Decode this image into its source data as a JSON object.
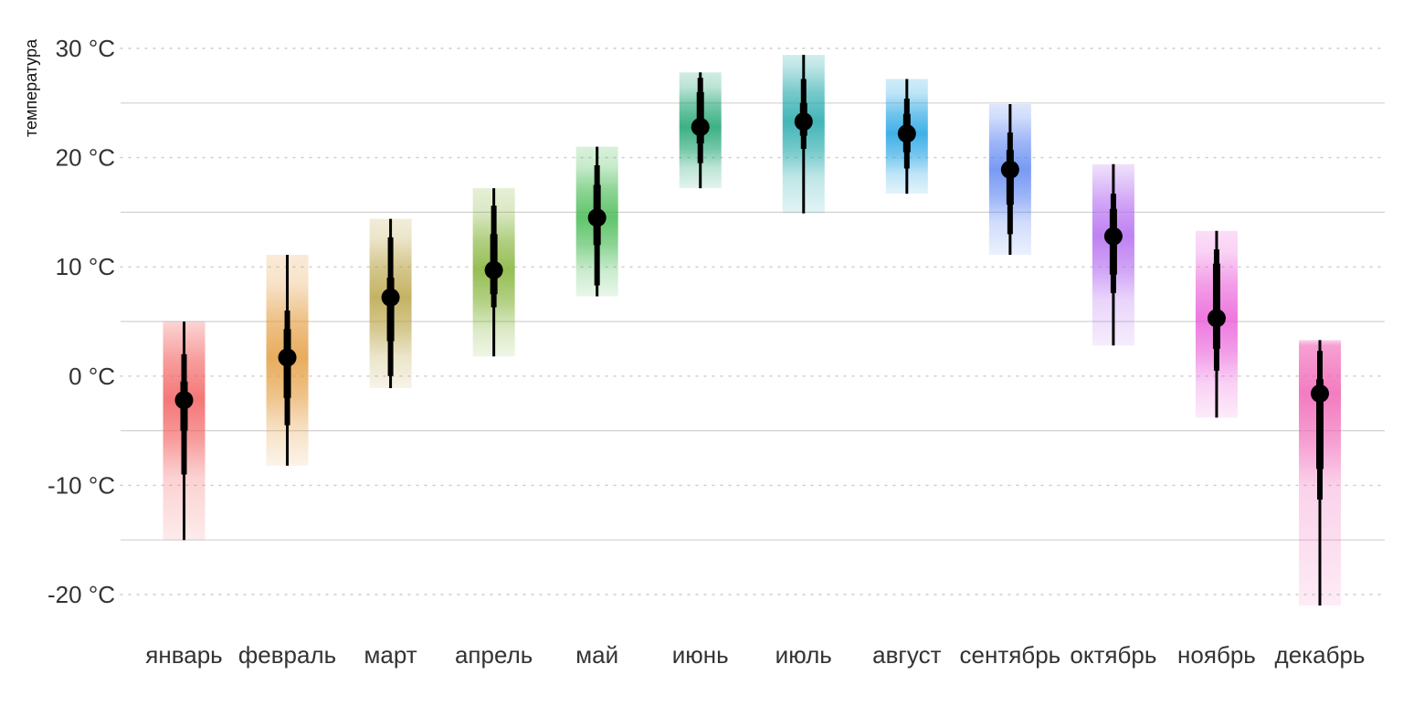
{
  "chart_data": {
    "type": "interval",
    "ylabel": "температура",
    "y_ticks": [
      {
        "value": 30,
        "label": "30 °C"
      },
      {
        "value": 20,
        "label": "20 °C"
      },
      {
        "value": 10,
        "label": "10 °C"
      },
      {
        "value": 0,
        "label": "0 °C"
      },
      {
        "value": -10,
        "label": "-10 °C"
      },
      {
        "value": -20,
        "label": "-20 °C"
      }
    ],
    "ylim": [
      -22,
      32
    ],
    "grid": {
      "dotted_major": [
        30,
        20,
        10,
        0,
        -10,
        -20
      ],
      "solid_minor": [
        25,
        15,
        5,
        -5,
        -15
      ]
    },
    "categories": [
      "январь",
      "февраль",
      "март",
      "апрель",
      "май",
      "июнь",
      "июль",
      "август",
      "сентябрь",
      "октябрь",
      "ноябрь",
      "декабрь"
    ],
    "series": [
      {
        "month": "январь",
        "median": -2.2,
        "range": [
          -15.0,
          5.0
        ],
        "interval_95": [
          -9.0,
          2.0
        ],
        "interval_66": [
          -5.0,
          -0.5
        ],
        "color": "#f25a5a"
      },
      {
        "month": "февраль",
        "median": 1.7,
        "range": [
          -8.2,
          11.1
        ],
        "interval_95": [
          -4.5,
          6.0
        ],
        "interval_66": [
          -2.0,
          4.3
        ],
        "color": "#e39a3a"
      },
      {
        "month": "март",
        "median": 7.2,
        "range": [
          -1.1,
          14.4
        ],
        "interval_95": [
          0.0,
          12.7
        ],
        "interval_66": [
          3.2,
          9.0
        ],
        "color": "#b8a242"
      },
      {
        "month": "апрель",
        "median": 9.7,
        "range": [
          1.8,
          17.2
        ],
        "interval_95": [
          6.3,
          15.6
        ],
        "interval_66": [
          7.5,
          13.0
        ],
        "color": "#7fb030"
      },
      {
        "month": "май",
        "median": 14.5,
        "range": [
          7.3,
          21.0
        ],
        "interval_95": [
          8.3,
          19.3
        ],
        "interval_66": [
          12.0,
          17.5
        ],
        "color": "#3fb84c"
      },
      {
        "month": "июнь",
        "median": 22.8,
        "range": [
          17.2,
          27.8
        ],
        "interval_95": [
          19.5,
          27.3
        ],
        "interval_66": [
          21.3,
          26.0
        ],
        "color": "#12a06b"
      },
      {
        "month": "июль",
        "median": 23.3,
        "range": [
          14.9,
          29.4
        ],
        "interval_95": [
          20.8,
          27.2
        ],
        "interval_66": [
          22.0,
          25.0
        ],
        "color": "#1aa5a8"
      },
      {
        "month": "август",
        "median": 22.2,
        "range": [
          16.7,
          27.2
        ],
        "interval_95": [
          19.0,
          25.4
        ],
        "interval_66": [
          20.5,
          24.0
        ],
        "color": "#169fe3"
      },
      {
        "month": "сентябрь",
        "median": 18.9,
        "range": [
          11.1,
          24.9
        ],
        "interval_95": [
          13.0,
          22.3
        ],
        "interval_66": [
          15.7,
          20.7
        ],
        "color": "#5b84f2"
      },
      {
        "month": "октябрь",
        "median": 12.8,
        "range": [
          2.8,
          19.4
        ],
        "interval_95": [
          7.6,
          16.7
        ],
        "interval_66": [
          9.3,
          15.3
        ],
        "color": "#b166f0"
      },
      {
        "month": "ноябрь",
        "median": 5.3,
        "range": [
          -3.8,
          13.3
        ],
        "interval_95": [
          0.5,
          11.6
        ],
        "interval_66": [
          2.5,
          10.3
        ],
        "color": "#ea5bd8"
      },
      {
        "month": "декабрь",
        "median": -1.6,
        "range": [
          -21.0,
          3.3
        ],
        "interval_95": [
          -11.3,
          2.3
        ],
        "interval_66": [
          -8.5,
          -0.3
        ],
        "color": "#f05fb3"
      }
    ]
  }
}
